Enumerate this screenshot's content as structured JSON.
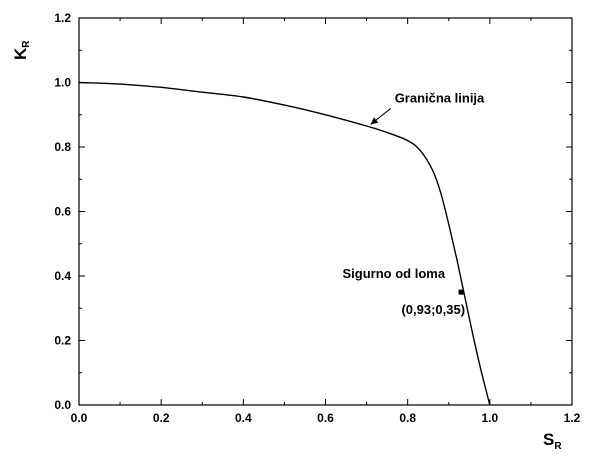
{
  "chart_data": {
    "type": "line",
    "title": "",
    "xlabel": {
      "main": "S",
      "sub": "R"
    },
    "ylabel": {
      "main": "K",
      "sub": "R"
    },
    "xlim": [
      0,
      1.2
    ],
    "ylim": [
      0,
      1.2
    ],
    "x_ticks": [
      "0.0",
      "0.2",
      "0.4",
      "0.6",
      "0.8",
      "1.0",
      "1.2"
    ],
    "y_ticks": [
      "0.0",
      "0.2",
      "0.4",
      "0.6",
      "0.8",
      "1.0",
      "1.2"
    ],
    "grid": false,
    "series": [
      {
        "name": "Granična linija",
        "x": [
          0.0,
          0.1,
          0.2,
          0.3,
          0.4,
          0.5,
          0.6,
          0.7,
          0.75,
          0.8,
          0.83,
          0.86,
          0.88,
          0.9,
          0.92,
          0.94,
          0.96,
          0.98,
          1.0
        ],
        "y": [
          1.0,
          0.995,
          0.985,
          0.97,
          0.955,
          0.93,
          0.9,
          0.865,
          0.845,
          0.82,
          0.79,
          0.73,
          0.66,
          0.56,
          0.45,
          0.33,
          0.21,
          0.1,
          0.0
        ]
      }
    ],
    "points": [
      {
        "x": 0.93,
        "y": 0.35,
        "label": "(0,93;0,35)"
      }
    ],
    "annotations": [
      {
        "text": "Granična linija",
        "target_x": 0.71,
        "target_y": 0.87
      },
      {
        "text": "Sigurno od loma"
      }
    ],
    "colors": {
      "line": "#000000",
      "axis": "#000000",
      "background": "#ffffff"
    }
  }
}
